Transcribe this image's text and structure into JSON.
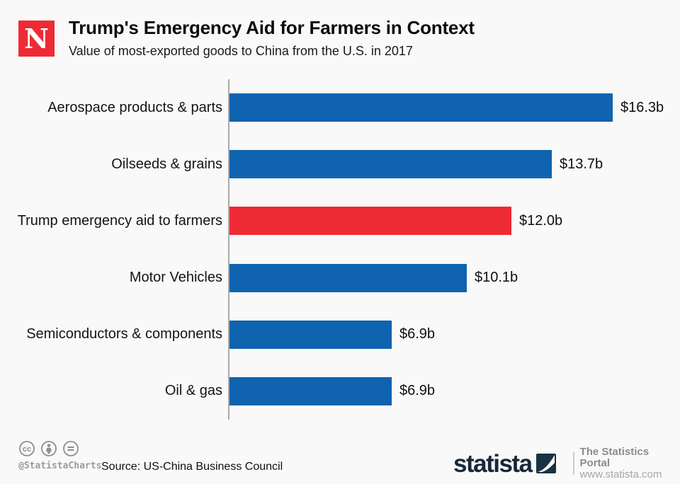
{
  "header": {
    "logo_letter": "N",
    "title": "Trump's Emergency Aid for Farmers in Context",
    "subtitle": "Value of most-exported goods to China from the U.S. in 2017"
  },
  "chart_data": {
    "type": "bar",
    "orientation": "horizontal",
    "title": "Trump's Emergency Aid for Farmers in Context",
    "subtitle": "Value of most-exported goods to China from the U.S. in 2017",
    "unit": "billion U.S. dollars",
    "xlim": [
      0,
      16.3
    ],
    "grid": false,
    "legend": false,
    "categories": [
      "Aerospace products & parts",
      "Oilseeds & grains",
      "Trump emergency aid to farmers",
      "Motor Vehicles",
      "Semiconductors & components",
      "Oil & gas"
    ],
    "values": [
      16.3,
      13.7,
      12.0,
      10.1,
      6.9,
      6.9
    ],
    "value_labels": [
      "$16.3b",
      "$13.7b",
      "$12.0b",
      "$10.1b",
      "$6.9b",
      "$6.9b"
    ],
    "bar_colors": [
      "#0f63af",
      "#0f63af",
      "#ee2b34",
      "#0f63af",
      "#0f63af",
      "#0f63af"
    ],
    "highlight_category": "Trump emergency aid to farmers",
    "colors": {
      "bar_blue": "#0f63af",
      "bar_red": "#ee2b34",
      "axis": "#a9a9a9"
    }
  },
  "footer": {
    "license_icons": [
      "cc-icon",
      "attribution-icon",
      "no-derivatives-icon"
    ],
    "credit": "@StatistaCharts",
    "source": "Source: US-China Business Council",
    "statista": {
      "wordmark": "statista",
      "tagline": "The Statistics Portal",
      "website": "www.statista.com"
    }
  }
}
